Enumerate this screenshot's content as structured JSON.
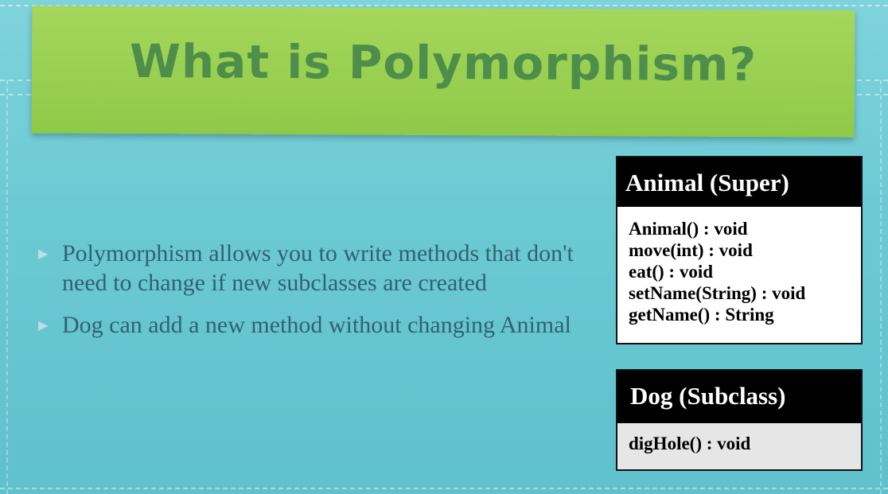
{
  "slide": {
    "title": "What is Polymorphism?",
    "bullets": [
      "Polymorphism allows you to write methods that don't need to change if new subclasses are created",
      "Dog can add a new method without changing Animal"
    ]
  },
  "uml": {
    "animal": {
      "name": "Animal (Super)",
      "methods": [
        "Animal() : void",
        "move(int) : void",
        "eat() : void",
        "setName(String) : void",
        "getName() : String"
      ]
    },
    "dog": {
      "name": "Dog (Subclass)",
      "methods": [
        "digHole() : void"
      ]
    }
  },
  "colors": {
    "background": "#6bc9d3",
    "banner": "#98cf50",
    "title_text": "#4f8e4a",
    "body_text": "#2f6271"
  }
}
